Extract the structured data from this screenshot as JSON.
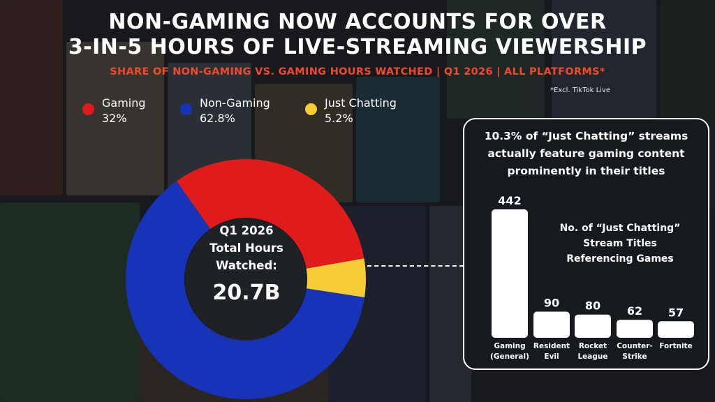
{
  "title_line1": "NON-GAMING NOW ACCOUNTS FOR OVER",
  "title_line2": "3-IN-5 HOURS OF LIVE-STREAMING VIEWERSHIP",
  "subtitle": "SHARE OF NON-GAMING VS. GAMING HOURS WATCHED | Q1 2026 | ALL PLATFORMS*",
  "footnote": "*Excl. TikTok Live",
  "colors": {
    "gaming": "#e01b1b",
    "non_gaming": "#1733b8",
    "just_chatting": "#f6cc37",
    "bar": "#ffffff"
  },
  "donut_center": {
    "line1": "Q1 2026",
    "line2": "Total Hours",
    "line3": "Watched:",
    "total": "20.7B"
  },
  "panel": {
    "head_line1": "10.3% of “Just Chatting” streams",
    "head_line2": "actually feature gaming content",
    "head_line3": "prominently in their titles",
    "bars_title_line1": "No. of “Just Chatting”",
    "bars_title_line2": "Stream Titles",
    "bars_title_line3": "Referencing Games"
  },
  "chart_data": [
    {
      "type": "pie",
      "title": "SHARE OF NON-GAMING VS. GAMING HOURS WATCHED | Q1 2026 | ALL PLATFORMS*",
      "slices": [
        {
          "name": "Gaming",
          "label": "32%",
          "value": 32,
          "color": "#e01b1b"
        },
        {
          "name": "Non-Gaming",
          "label": "62.8%",
          "value": 62.8,
          "color": "#1733b8"
        },
        {
          "name": "Just Chatting",
          "label": "5.2%",
          "value": 5.2,
          "color": "#f6cc37"
        }
      ],
      "legend": "top"
    },
    {
      "type": "bar",
      "title": "No. of “Just Chatting” Stream Titles Referencing Games",
      "categories": [
        "Gaming (General)",
        "Resident Evil",
        "Rocket League",
        "Counter-Strike",
        "Fortnite"
      ],
      "category_lines": [
        [
          "Gaming",
          "(General)"
        ],
        [
          "Resident",
          "Evil"
        ],
        [
          "Rocket",
          "League"
        ],
        [
          "Counter-",
          "Strike"
        ],
        [
          "Fortnite"
        ]
      ],
      "values": [
        442,
        90,
        80,
        62,
        57
      ],
      "value_labels": [
        "442",
        "90",
        "80",
        "62",
        "57"
      ]
    }
  ]
}
